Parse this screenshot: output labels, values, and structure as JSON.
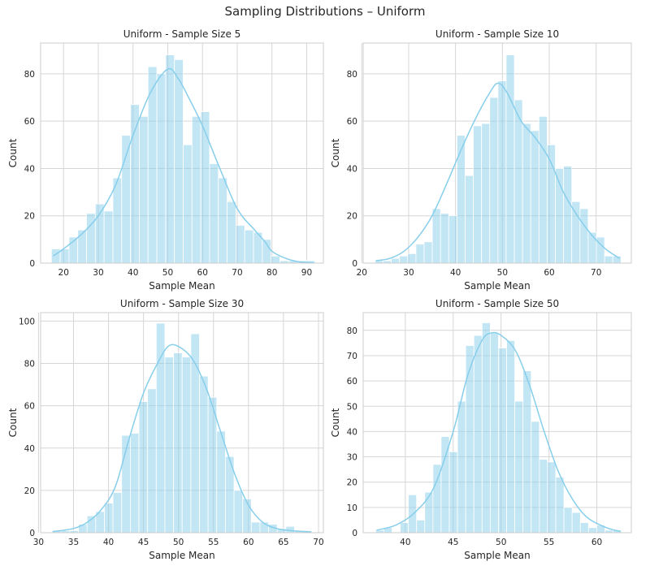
{
  "title": "Sampling Distributions – Uniform",
  "colors": {
    "bar": "#87ceeb",
    "kde": "#87ceeb",
    "grid": "#d6d6d6"
  },
  "chart_data": [
    {
      "type": "bar",
      "title": "Uniform - Sample Size 5",
      "xlabel": "Sample Mean",
      "ylabel": "Count",
      "xlim": [
        13.4,
        94.8
      ],
      "ylim": [
        0,
        93
      ],
      "xticks": [
        20,
        30,
        40,
        50,
        60,
        70,
        80,
        90
      ],
      "yticks": [
        0,
        20,
        40,
        60,
        80
      ],
      "bin_start": 16.5,
      "bin_width": 2.53,
      "counts": [
        6,
        6,
        11,
        14,
        21,
        25,
        22,
        36,
        54,
        67,
        62,
        83,
        80,
        88,
        86,
        50,
        62,
        64,
        42,
        36,
        26,
        16,
        14,
        13,
        10,
        3,
        1,
        1,
        1,
        1
      ],
      "kde": [
        [
          17,
          3
        ],
        [
          20,
          6
        ],
        [
          25,
          12
        ],
        [
          30,
          20
        ],
        [
          35,
          33
        ],
        [
          40,
          54
        ],
        [
          45,
          72
        ],
        [
          50,
          82
        ],
        [
          53,
          78
        ],
        [
          56,
          70
        ],
        [
          60,
          58
        ],
        [
          65,
          40
        ],
        [
          70,
          23
        ],
        [
          75,
          14
        ],
        [
          78,
          9
        ],
        [
          80,
          5
        ],
        [
          84,
          2
        ],
        [
          88,
          0.5
        ],
        [
          92,
          0.2
        ]
      ]
    },
    {
      "type": "bar",
      "title": "Uniform - Sample Size 10",
      "xlabel": "Sample Mean",
      "ylabel": "Count",
      "xlim": [
        20.3,
        77.5
      ],
      "ylim": [
        0,
        93
      ],
      "xticks": [
        20,
        30,
        40,
        50,
        60,
        70
      ],
      "yticks": [
        0,
        20,
        40,
        60,
        80
      ],
      "bin_start": 22.8,
      "bin_width": 1.75,
      "counts": [
        1,
        1,
        2,
        3,
        4,
        8,
        9,
        23,
        21,
        20,
        54,
        37,
        58,
        59,
        70,
        77,
        88,
        69,
        59,
        56,
        62,
        50,
        40,
        41,
        26,
        23,
        13,
        11,
        3,
        3
      ],
      "kde": [
        [
          23,
          1
        ],
        [
          26,
          2
        ],
        [
          29,
          5
        ],
        [
          32,
          11
        ],
        [
          35,
          20
        ],
        [
          38,
          33
        ],
        [
          41,
          47
        ],
        [
          44,
          60
        ],
        [
          47,
          71
        ],
        [
          49,
          76
        ],
        [
          51,
          72
        ],
        [
          54,
          60
        ],
        [
          57,
          53
        ],
        [
          60,
          44
        ],
        [
          63,
          30
        ],
        [
          66,
          20
        ],
        [
          69,
          12
        ],
        [
          72,
          6
        ],
        [
          75,
          2
        ]
      ]
    },
    {
      "type": "bar",
      "title": "Uniform - Sample Size 30",
      "xlabel": "Sample Mean",
      "ylabel": "Count",
      "xlim": [
        30.3,
        70.7
      ],
      "ylim": [
        0,
        104
      ],
      "xticks": [
        30,
        35,
        40,
        45,
        50,
        55,
        60,
        65,
        70
      ],
      "yticks": [
        0,
        20,
        40,
        60,
        80,
        100
      ],
      "bin_start": 32.0,
      "bin_width": 1.235,
      "counts": [
        1,
        1,
        1,
        4,
        8,
        10,
        14,
        19,
        46,
        47,
        62,
        68,
        99,
        83,
        85,
        83,
        94,
        74,
        64,
        48,
        36,
        20,
        16,
        5,
        5,
        4,
        2,
        3,
        1,
        1
      ],
      "kde": [
        [
          32,
          0.5
        ],
        [
          35,
          2
        ],
        [
          37,
          5
        ],
        [
          39,
          11
        ],
        [
          41,
          22
        ],
        [
          43,
          45
        ],
        [
          45,
          66
        ],
        [
          47,
          80
        ],
        [
          48.5,
          88
        ],
        [
          50,
          88
        ],
        [
          52,
          82
        ],
        [
          54,
          68
        ],
        [
          56,
          48
        ],
        [
          58,
          28
        ],
        [
          60,
          13
        ],
        [
          62,
          5
        ],
        [
          64,
          2
        ],
        [
          66,
          1
        ],
        [
          69,
          0.3
        ]
      ]
    },
    {
      "type": "bar",
      "title": "Uniform - Sample Size 50",
      "xlabel": "Sample Mean",
      "ylabel": "Count",
      "xlim": [
        35.6,
        63.6
      ],
      "ylim": [
        0,
        87
      ],
      "xticks": [
        40,
        45,
        50,
        55,
        60
      ],
      "yticks": [
        0,
        10,
        20,
        30,
        40,
        50,
        60,
        70,
        80
      ],
      "bin_start": 36.9,
      "bin_width": 0.855,
      "counts": [
        1,
        2,
        0,
        4,
        15,
        5,
        16,
        27,
        38,
        32,
        52,
        74,
        78,
        83,
        79,
        73,
        76,
        52,
        64,
        44,
        29,
        28,
        22,
        10,
        8,
        4,
        2,
        3,
        1,
        1
      ],
      "kde": [
        [
          37,
          1
        ],
        [
          39,
          3
        ],
        [
          41,
          8
        ],
        [
          43,
          18
        ],
        [
          45,
          40
        ],
        [
          46.5,
          62
        ],
        [
          48,
          76
        ],
        [
          49,
          79
        ],
        [
          50,
          78
        ],
        [
          51.5,
          72
        ],
        [
          53,
          58
        ],
        [
          54.5,
          40
        ],
        [
          56,
          24
        ],
        [
          57.5,
          13
        ],
        [
          59,
          6
        ],
        [
          61,
          2
        ],
        [
          62.5,
          0.5
        ]
      ]
    }
  ]
}
